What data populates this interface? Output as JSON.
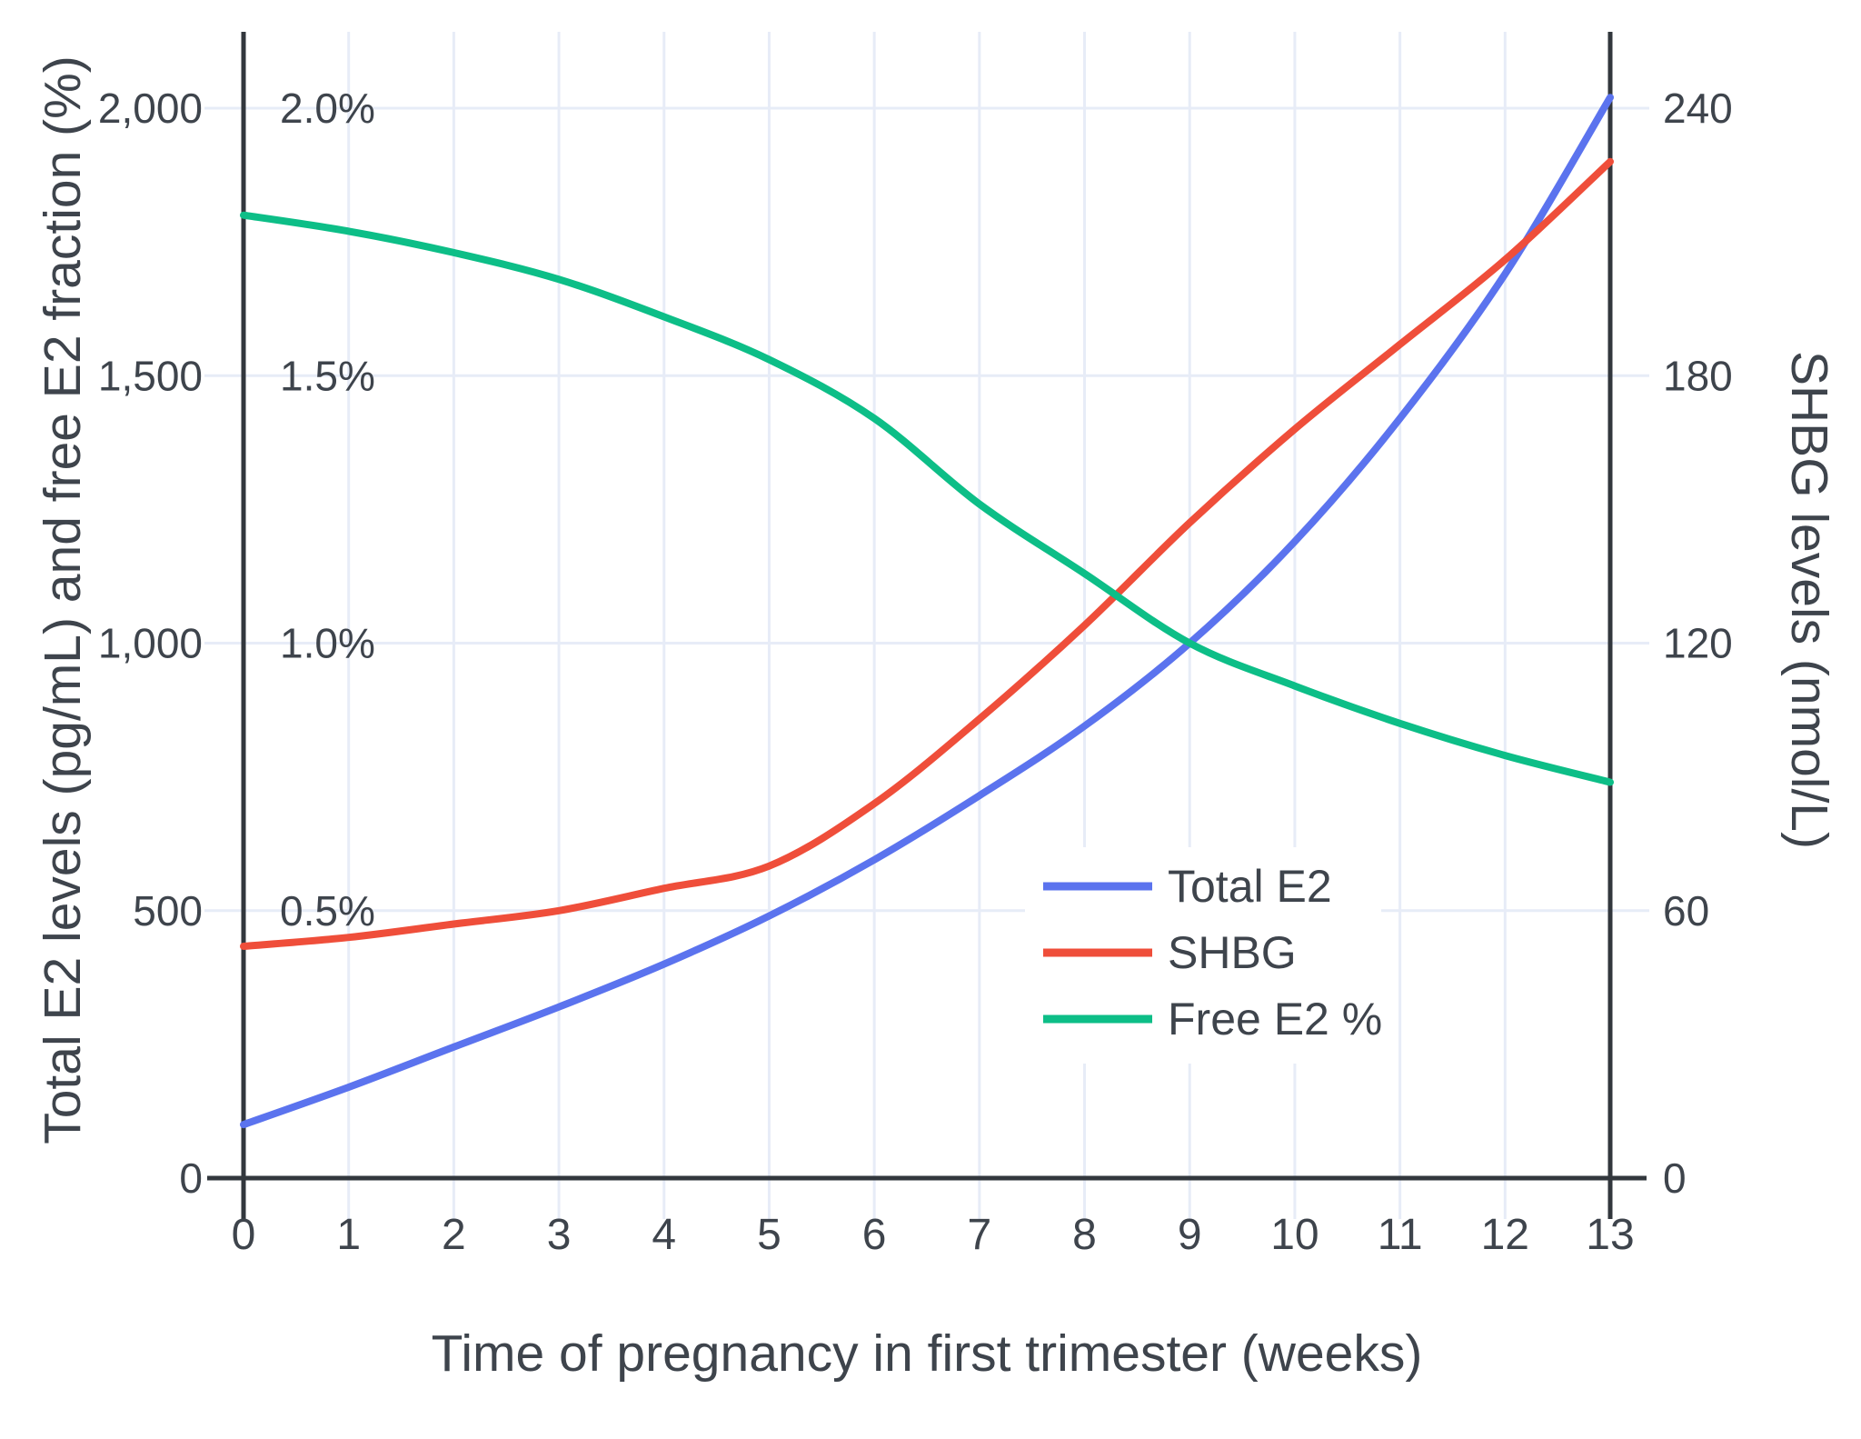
{
  "chart_data": {
    "type": "line",
    "x": [
      0,
      1,
      2,
      3,
      4,
      5,
      6,
      7,
      8,
      9,
      10,
      11,
      12,
      13
    ],
    "x_tick_labels": [
      "0",
      "1",
      "2",
      "3",
      "4",
      "5",
      "6",
      "7",
      "8",
      "9",
      "10",
      "11",
      "12",
      "13"
    ],
    "xlabel": "Time of pregnancy in first trimester (weeks)",
    "ylabel_left": "Total E2 levels (pg/mL) and free E2 fraction (%)",
    "ylabel_right": "SHBG levels (nmol/L)",
    "ylim_left": [
      0,
      2000
    ],
    "ylim_right": [
      0,
      240
    ],
    "grid": true,
    "legend_position": "inside-right",
    "left_ticks": [
      {
        "label": "0",
        "value": 0
      },
      {
        "label": "500",
        "value": 500
      },
      {
        "label": "1,000",
        "value": 1000
      },
      {
        "label": "1,500",
        "value": 1500
      },
      {
        "label": "2,000",
        "value": 2000
      }
    ],
    "percent_ticks": [
      {
        "label": "0.5%",
        "value": 0.5
      },
      {
        "label": "1.0%",
        "value": 1.0
      },
      {
        "label": "1.5%",
        "value": 1.5
      },
      {
        "label": "2.0%",
        "value": 2.0
      }
    ],
    "right_ticks": [
      {
        "label": "0",
        "value": 0
      },
      {
        "label": "60",
        "value": 60
      },
      {
        "label": "120",
        "value": 120
      },
      {
        "label": "180",
        "value": 180
      },
      {
        "label": "240",
        "value": 240
      }
    ],
    "series": [
      {
        "name": "Total E2",
        "axis": "left",
        "unit": "pg/mL",
        "color": "#5b73ee",
        "values": [
          100,
          170,
          245,
          320,
          400,
          490,
          595,
          715,
          845,
          1000,
          1190,
          1420,
          1690,
          2020
        ]
      },
      {
        "name": "SHBG",
        "axis": "right",
        "unit": "nmol/L",
        "color": "#ef4e3a",
        "values": [
          52,
          54,
          57,
          60,
          65,
          70,
          84,
          103,
          124,
          147,
          168,
          187,
          206,
          228
        ]
      },
      {
        "name": "Free E2 %",
        "axis": "percent",
        "unit": "%",
        "color": "#0dbe87",
        "values": [
          1.8,
          1.77,
          1.73,
          1.68,
          1.61,
          1.53,
          1.42,
          1.26,
          1.13,
          1.0,
          0.92,
          0.85,
          0.79,
          0.74
        ]
      }
    ]
  },
  "colors": {
    "grid": "#e7ecf7",
    "axis": "#32373d",
    "text": "#3e444c",
    "legend_bg": "#ffffff"
  }
}
